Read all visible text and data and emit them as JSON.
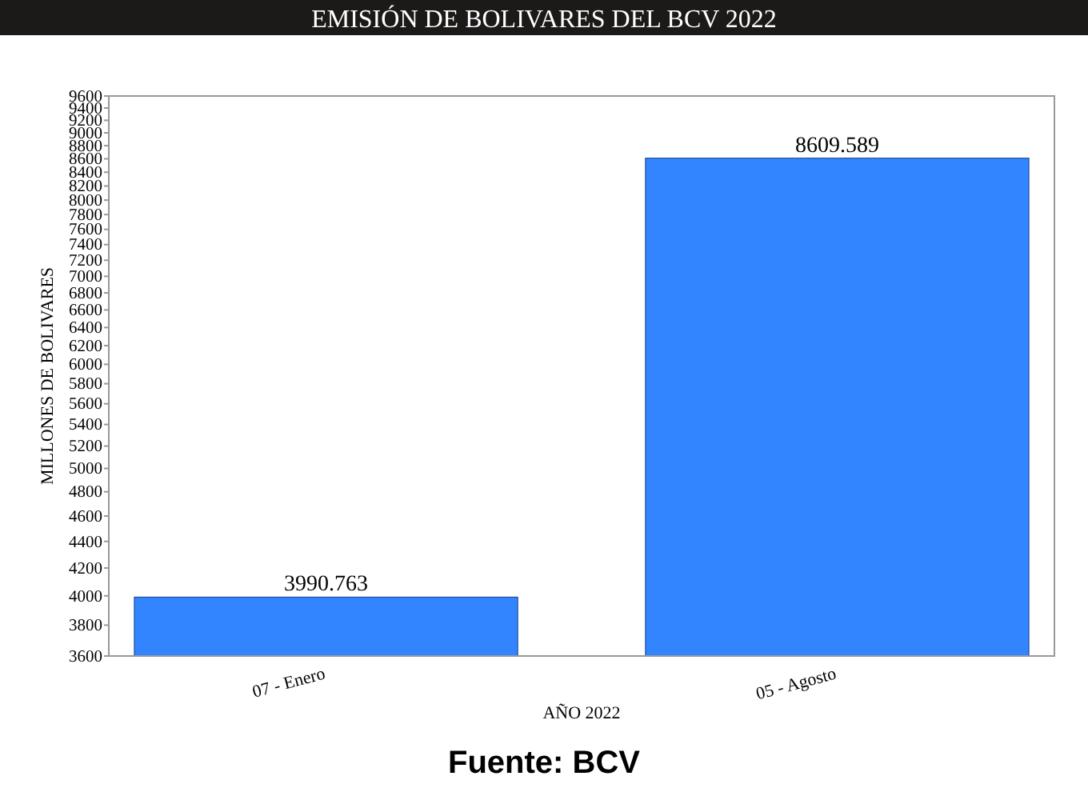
{
  "chart_data": {
    "type": "bar",
    "title": "EMISIÓN DE BOLIVARES DEL BCV 2022",
    "xlabel": "AÑO 2022",
    "ylabel": "MILLONES DE BOLIVARES",
    "categories": [
      "07 - Enero",
      "05 - Agosto"
    ],
    "values": [
      3990.763,
      8609.589
    ],
    "color": "#3385ff",
    "log": true,
    "ylim": [
      3600,
      9600
    ],
    "yticks": [
      3600,
      3800,
      4000,
      4200,
      4400,
      4600,
      4800,
      5000,
      5200,
      5400,
      5600,
      5800,
      6000,
      6200,
      6400,
      6600,
      6800,
      7000,
      7200,
      7400,
      7600,
      7800,
      8000,
      8200,
      8400,
      8600,
      8800,
      9000,
      9200,
      9400,
      9600
    ],
    "data_labels": true,
    "grid": false,
    "annotations": [
      "Fuente: BCV"
    ]
  }
}
